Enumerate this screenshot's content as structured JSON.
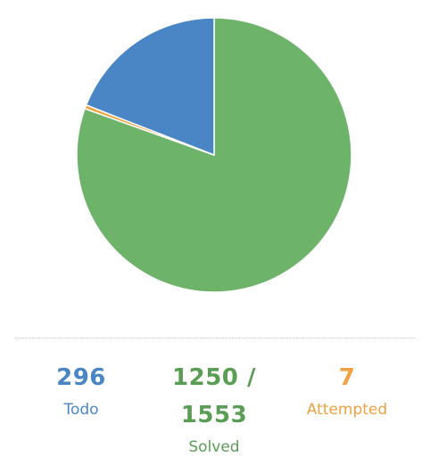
{
  "chart_data": {
    "type": "pie",
    "start_angle_deg": 0,
    "direction": "clockwise",
    "slices": [
      {
        "label": "Solved",
        "value": 1250,
        "color": "#6db46a"
      },
      {
        "label": "Attempted",
        "value": 7,
        "color": "#f0a142"
      },
      {
        "label": "Todo",
        "value": 296,
        "color": "#4a86c5"
      }
    ],
    "total": 1553
  },
  "stats": {
    "todo": {
      "value": "296",
      "label": "Todo",
      "color": "#4a86c5"
    },
    "solved": {
      "value": "1250 / 1553",
      "label": "Solved",
      "color": "#5a9e55"
    },
    "attempted": {
      "value": "7",
      "label": "Attempted",
      "color": "#f0a142"
    }
  }
}
